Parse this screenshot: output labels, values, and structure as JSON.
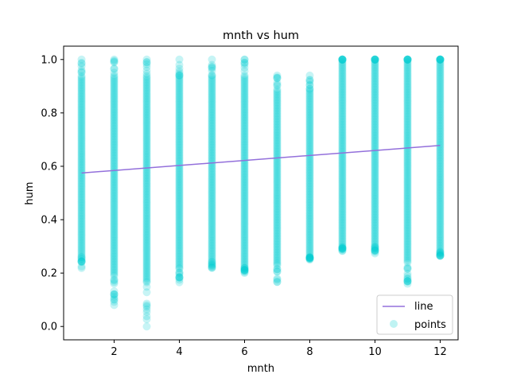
{
  "chart_data": {
    "type": "scatter",
    "title": "mnth vs hum",
    "xlabel": "mnth",
    "ylabel": "hum",
    "xlim": [
      0.45,
      12.55
    ],
    "ylim": [
      -0.05,
      1.05
    ],
    "xticks": [
      2,
      4,
      6,
      8,
      10,
      12
    ],
    "yticks": [
      0.0,
      0.2,
      0.4,
      0.6,
      0.8,
      1.0
    ],
    "tick_labels": {
      "x": [
        "2",
        "4",
        "6",
        "8",
        "10",
        "12"
      ],
      "y": [
        "0.0",
        "0.2",
        "0.4",
        "0.6",
        "0.8",
        "1.0"
      ]
    },
    "grid": false,
    "legend": {
      "placement": "lower-right",
      "entries": [
        "line",
        "points"
      ]
    },
    "colors": {
      "points": "#00CED1",
      "line": "#9370DB"
    },
    "series": [
      {
        "name": "points",
        "kind": "scatter",
        "groups": [
          {
            "x": 1,
            "min": 0.21,
            "max": 1.0,
            "outliers": [],
            "dense_min": 0.26,
            "dense_max": 0.94
          },
          {
            "x": 2,
            "min": 0.08,
            "max": 1.0,
            "outliers": [
              0.08,
              0.1,
              0.12
            ],
            "dense_min": 0.19,
            "dense_max": 0.94
          },
          {
            "x": 3,
            "min": 0.0,
            "max": 1.0,
            "outliers": [
              0.0
            ],
            "dense_min": 0.17,
            "dense_max": 0.94
          },
          {
            "x": 4,
            "min": 0.16,
            "max": 1.0,
            "outliers": [],
            "dense_min": 0.22,
            "dense_max": 0.94
          },
          {
            "x": 5,
            "min": 0.21,
            "max": 1.0,
            "outliers": [],
            "dense_min": 0.25,
            "dense_max": 0.94
          },
          {
            "x": 6,
            "min": 0.2,
            "max": 1.0,
            "outliers": [],
            "dense_min": 0.22,
            "dense_max": 0.94
          },
          {
            "x": 7,
            "min": 0.16,
            "max": 0.94,
            "outliers": [],
            "dense_min": 0.24,
            "dense_max": 0.89
          },
          {
            "x": 8,
            "min": 0.25,
            "max": 0.94,
            "outliers": [],
            "dense_min": 0.26,
            "dense_max": 0.89
          },
          {
            "x": 9,
            "min": 0.28,
            "max": 1.0,
            "outliers": [],
            "dense_min": 0.3,
            "dense_max": 1.0
          },
          {
            "x": 10,
            "min": 0.27,
            "max": 1.0,
            "outliers": [],
            "dense_min": 0.3,
            "dense_max": 1.0
          },
          {
            "x": 11,
            "min": 0.16,
            "max": 1.0,
            "outliers": [
              0.16,
              0.18
            ],
            "dense_min": 0.24,
            "dense_max": 1.0
          },
          {
            "x": 12,
            "min": 0.26,
            "max": 1.0,
            "outliers": [],
            "dense_min": 0.28,
            "dense_max": 1.0
          }
        ]
      },
      {
        "name": "line",
        "kind": "line",
        "x": [
          1,
          12
        ],
        "y": [
          0.575,
          0.678
        ]
      }
    ]
  }
}
